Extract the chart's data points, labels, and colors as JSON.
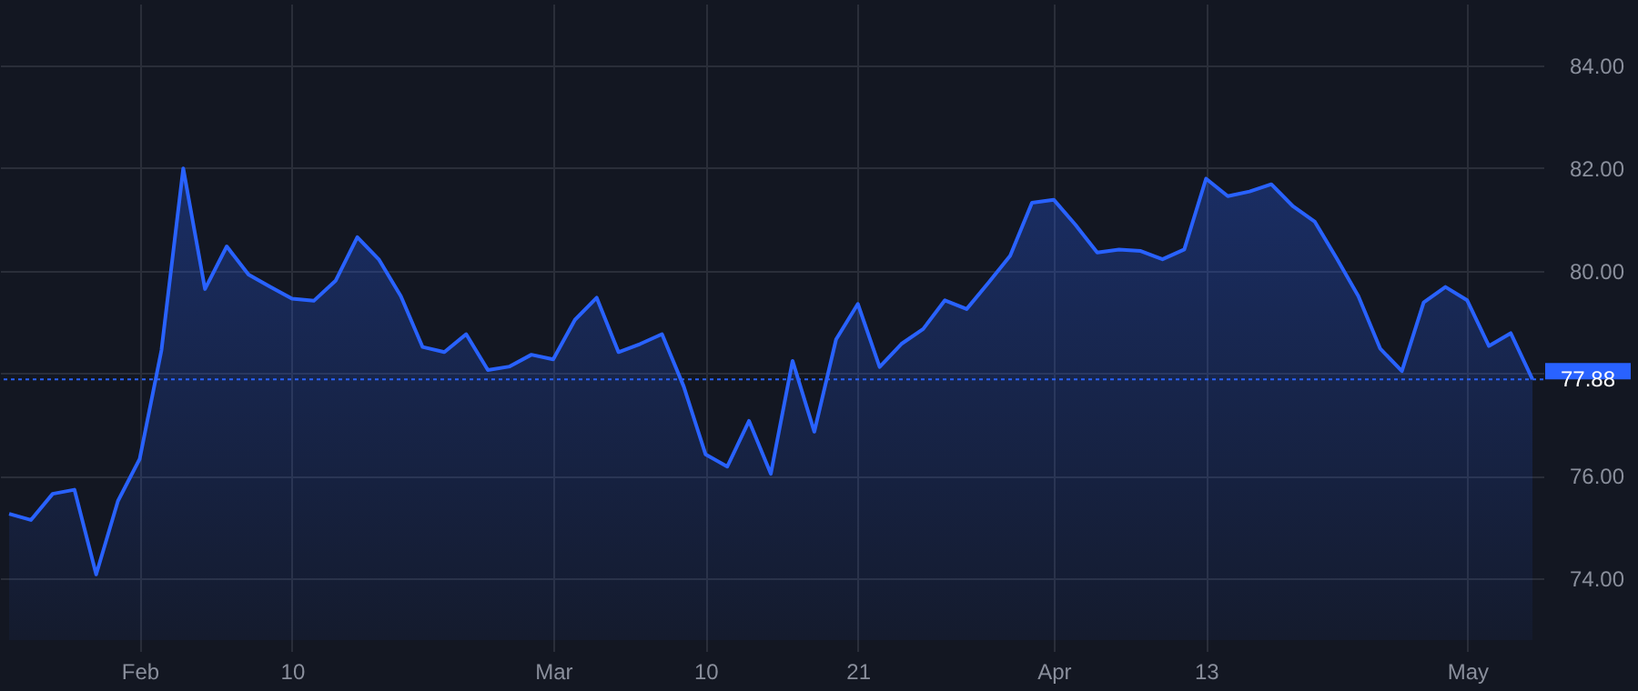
{
  "chart_data": {
    "type": "area",
    "categories": [
      null,
      null,
      null,
      null,
      null,
      null,
      "Feb",
      null,
      null,
      null,
      null,
      null,
      null,
      "10",
      null,
      null,
      null,
      null,
      null,
      null,
      null,
      null,
      null,
      null,
      null,
      "Mar",
      null,
      null,
      null,
      null,
      null,
      null,
      "10",
      null,
      null,
      null,
      null,
      null,
      null,
      "21",
      null,
      null,
      null,
      null,
      null,
      null,
      null,
      null,
      "Apr",
      null,
      null,
      null,
      null,
      null,
      null,
      "13",
      null,
      null,
      null,
      null,
      null,
      null,
      null,
      null,
      null,
      null,
      null,
      "May",
      null,
      null,
      null
    ],
    "series": [
      {
        "color": "#2962ff",
        "values": [
          75.26,
          75.14,
          75.65,
          75.73,
          74.08,
          75.51,
          76.33,
          78.45,
          81.99,
          79.64,
          80.47,
          79.92,
          79.68,
          79.45,
          79.41,
          79.8,
          80.65,
          80.21,
          79.5,
          78.51,
          78.41,
          78.76,
          78.06,
          78.13,
          78.36,
          78.27,
          79.04,
          79.47,
          78.41,
          78.57,
          78.76,
          77.74,
          76.42,
          76.18,
          77.07,
          76.04,
          78.24,
          76.86,
          78.66,
          79.35,
          78.12,
          78.57,
          78.86,
          79.42,
          79.25,
          79.76,
          80.29,
          81.32,
          81.38,
          80.89,
          80.35,
          80.41,
          80.38,
          80.22,
          80.41,
          81.79,
          81.45,
          81.54,
          81.68,
          81.25,
          80.95,
          80.24,
          79.5,
          78.48,
          78.04,
          79.38,
          79.68,
          79.42,
          78.53,
          78.78,
          77.88
        ]
      }
    ],
    "ylim": [
      72.8,
      85.2
    ],
    "yticks": [
      {
        "value": 74,
        "label": "74.00"
      },
      {
        "value": 76,
        "label": "76.00"
      },
      {
        "value": 78,
        "label": null
      },
      {
        "value": 80,
        "label": "80.00"
      },
      {
        "value": 82,
        "label": "82.00"
      },
      {
        "value": 84,
        "label": "84.00"
      }
    ],
    "grid": true,
    "ref_lines": [
      {
        "axis": "y",
        "value": 77.88,
        "label": "77.88",
        "color": "#2962ff",
        "line_style": "dotted"
      }
    ]
  }
}
